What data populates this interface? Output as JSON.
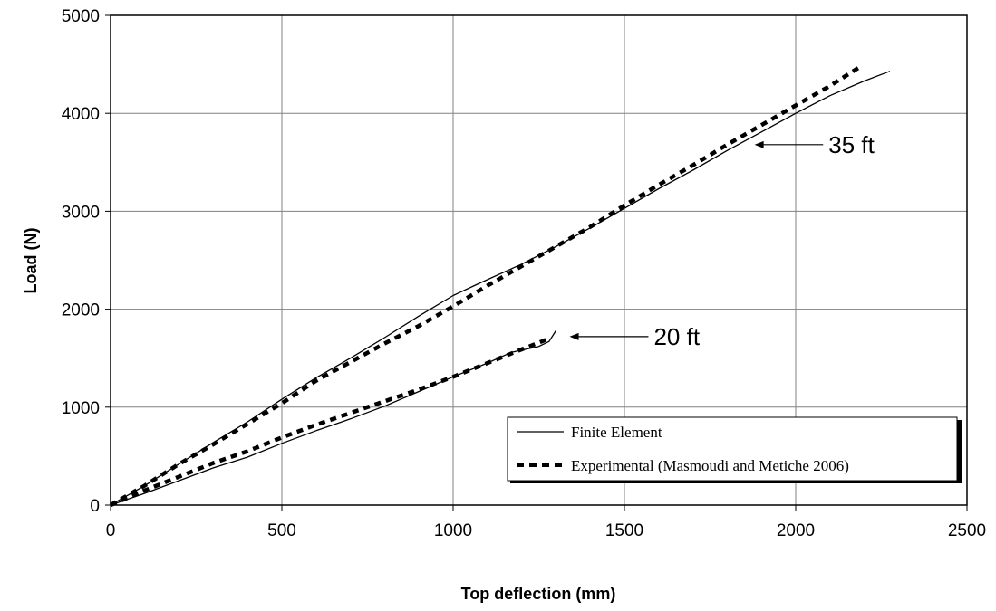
{
  "chart_data": {
    "type": "line",
    "title": "",
    "xlabel": "Top deflection (mm)",
    "ylabel": "Load (N)",
    "xlim": [
      0,
      2500
    ],
    "ylim": [
      0,
      5000
    ],
    "xticks": [
      "0",
      "500",
      "1000",
      "1500",
      "2000",
      "2500"
    ],
    "yticks": [
      "0",
      "1000",
      "2000",
      "3000",
      "4000",
      "5000"
    ],
    "grid": true,
    "legend_position": "bottom-right",
    "series": [
      {
        "name": "Finite Element",
        "style": "solid",
        "color": "#000000",
        "points": [
          [
            0,
            0
          ],
          [
            100,
            200
          ],
          [
            200,
            420
          ],
          [
            300,
            640
          ],
          [
            400,
            850
          ],
          [
            500,
            1080
          ],
          [
            600,
            1300
          ],
          [
            700,
            1500
          ],
          [
            800,
            1710
          ],
          [
            900,
            1930
          ],
          [
            1000,
            2140
          ],
          [
            1080,
            2270
          ],
          [
            1200,
            2460
          ],
          [
            1300,
            2640
          ],
          [
            1400,
            2830
          ],
          [
            1500,
            3030
          ],
          [
            1600,
            3230
          ],
          [
            1700,
            3420
          ],
          [
            1800,
            3620
          ],
          [
            1900,
            3810
          ],
          [
            2000,
            4000
          ],
          [
            2100,
            4180
          ],
          [
            2200,
            4330
          ],
          [
            2275,
            4430
          ]
        ]
      },
      {
        "name": "Experimental (Masmoudi and Metiche 2006)",
        "style": "dashed",
        "color": "#000000",
        "points": [
          [
            0,
            0
          ],
          [
            100,
            200
          ],
          [
            200,
            420
          ],
          [
            300,
            620
          ],
          [
            400,
            830
          ],
          [
            500,
            1040
          ],
          [
            600,
            1270
          ],
          [
            700,
            1460
          ],
          [
            800,
            1650
          ],
          [
            900,
            1830
          ],
          [
            1000,
            2030
          ],
          [
            1100,
            2240
          ],
          [
            1200,
            2440
          ],
          [
            1300,
            2640
          ],
          [
            1400,
            2840
          ],
          [
            1500,
            3060
          ],
          [
            1600,
            3270
          ],
          [
            1700,
            3470
          ],
          [
            1800,
            3680
          ],
          [
            1900,
            3880
          ],
          [
            2000,
            4080
          ],
          [
            2100,
            4280
          ],
          [
            2190,
            4480
          ]
        ]
      },
      {
        "name": "Finite Element",
        "style": "solid",
        "color": "#000000",
        "points": [
          [
            0,
            0
          ],
          [
            100,
            120
          ],
          [
            200,
            250
          ],
          [
            300,
            380
          ],
          [
            400,
            490
          ],
          [
            500,
            630
          ],
          [
            600,
            760
          ],
          [
            700,
            880
          ],
          [
            800,
            1010
          ],
          [
            900,
            1160
          ],
          [
            1000,
            1310
          ],
          [
            1100,
            1450
          ],
          [
            1170,
            1560
          ],
          [
            1250,
            1620
          ],
          [
            1280,
            1670
          ],
          [
            1300,
            1780
          ]
        ]
      },
      {
        "name": "Experimental (Masmoudi and Metiche 2006)",
        "style": "dashed",
        "color": "#000000",
        "points": [
          [
            0,
            0
          ],
          [
            100,
            150
          ],
          [
            200,
            290
          ],
          [
            300,
            430
          ],
          [
            400,
            550
          ],
          [
            500,
            690
          ],
          [
            600,
            820
          ],
          [
            700,
            940
          ],
          [
            800,
            1060
          ],
          [
            900,
            1180
          ],
          [
            1000,
            1310
          ],
          [
            1100,
            1450
          ],
          [
            1200,
            1590
          ],
          [
            1280,
            1700
          ]
        ]
      }
    ],
    "annotations": [
      {
        "text": "35 ft",
        "arrow_tip": [
          1880,
          3680
        ],
        "arrow_tail": [
          2080,
          3680
        ]
      },
      {
        "text": "20 ft",
        "arrow_tip": [
          1340,
          1720
        ],
        "arrow_tail": [
          1570,
          1720
        ]
      }
    ]
  }
}
